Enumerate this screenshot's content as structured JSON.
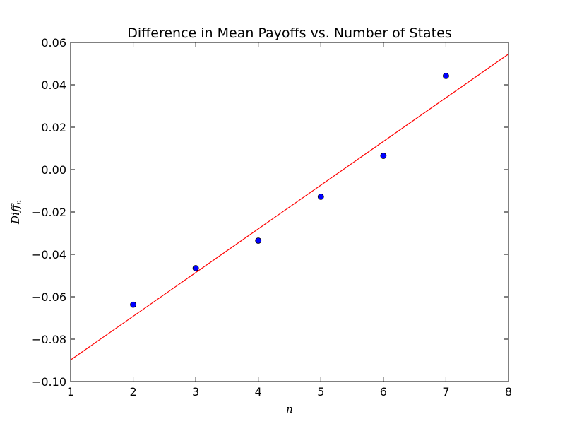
{
  "chart_data": {
    "type": "scatter",
    "title": "Difference in Mean Payoffs vs. Number of States",
    "xlabel": "n",
    "ylabel_main": "Diff",
    "ylabel_sub": "n",
    "xlim": [
      1,
      8
    ],
    "ylim": [
      -0.1,
      0.06
    ],
    "xticks": [
      1,
      2,
      3,
      4,
      5,
      6,
      7,
      8
    ],
    "xtick_labels": [
      "1",
      "2",
      "3",
      "4",
      "5",
      "6",
      "7",
      "8"
    ],
    "yticks": [
      -0.1,
      -0.08,
      -0.06,
      -0.04,
      -0.02,
      0.0,
      0.02,
      0.04,
      0.06
    ],
    "ytick_labels": [
      "−0.10",
      "−0.08",
      "−0.06",
      "−0.04",
      "−0.02",
      "0.00",
      "0.02",
      "0.04",
      "0.06"
    ],
    "grid": false,
    "series": [
      {
        "type": "scatter",
        "color": "#0000ff",
        "x": [
          2,
          3,
          4,
          5,
          6,
          7
        ],
        "y": [
          -0.0637,
          -0.0465,
          -0.0335,
          -0.0128,
          0.0065,
          0.0442
        ]
      },
      {
        "type": "line",
        "color": "#ff0000",
        "x": [
          1,
          8
        ],
        "y": [
          -0.0898,
          0.0545
        ]
      }
    ]
  }
}
